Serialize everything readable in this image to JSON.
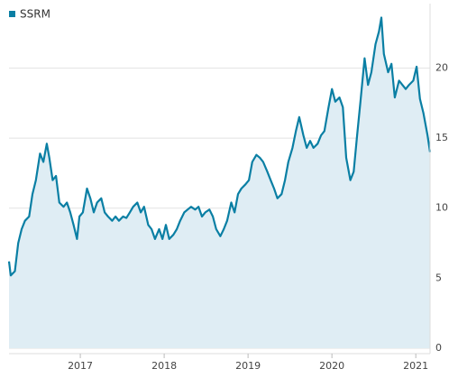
{
  "chart_data": {
    "type": "area",
    "series": [
      {
        "name": "SSRM",
        "color": "#0a7fa4",
        "fill": "#dfedf4",
        "x": [
          2016.15,
          2016.17,
          2016.22,
          2016.26,
          2016.3,
          2016.34,
          2016.39,
          2016.43,
          2016.47,
          2016.52,
          2016.56,
          2016.6,
          2016.63,
          2016.67,
          2016.71,
          2016.75,
          2016.8,
          2016.84,
          2016.88,
          2016.92,
          2016.96,
          2016.99,
          2017.03,
          2017.08,
          2017.12,
          2017.16,
          2017.2,
          2017.25,
          2017.29,
          2017.33,
          2017.38,
          2017.42,
          2017.46,
          2017.51,
          2017.55,
          2017.59,
          2017.63,
          2017.68,
          2017.72,
          2017.76,
          2017.81,
          2017.85,
          2017.89,
          2017.94,
          2017.98,
          2018.02,
          2018.06,
          2018.11,
          2018.15,
          2018.19,
          2018.24,
          2018.28,
          2018.32,
          2018.37,
          2018.41,
          2018.45,
          2018.49,
          2018.54,
          2018.58,
          2018.62,
          2018.67,
          2018.71,
          2018.75,
          2018.8,
          2018.84,
          2018.88,
          2018.92,
          2018.97,
          2019.01,
          2019.05,
          2019.1,
          2019.14,
          2019.18,
          2019.23,
          2019.27,
          2019.31,
          2019.35,
          2019.4,
          2019.44,
          2019.48,
          2019.53,
          2019.57,
          2019.61,
          2019.66,
          2019.7,
          2019.74,
          2019.78,
          2019.83,
          2019.87,
          2019.91,
          2019.96,
          2020.0,
          2020.04,
          2020.09,
          2020.13,
          2020.17,
          2020.22,
          2020.26,
          2020.3,
          2020.34,
          2020.39,
          2020.43,
          2020.47,
          2020.52,
          2020.56,
          2020.59,
          2020.62,
          2020.67,
          2020.71,
          2020.75,
          2020.8,
          2020.84,
          2020.88,
          2020.92,
          2020.97,
          2021.01,
          2021.05,
          2021.09,
          2021.14,
          2021.17
        ],
        "values": [
          6.2,
          5.2,
          5.5,
          7.5,
          8.5,
          9.1,
          9.4,
          11,
          12,
          13.9,
          13.3,
          14.6,
          13.6,
          12,
          12.3,
          10.4,
          10.1,
          10.4,
          9.7,
          8.8,
          7.8,
          9.4,
          9.7,
          11.4,
          10.7,
          9.7,
          10.4,
          10.7,
          9.7,
          9.4,
          9.1,
          9.4,
          9.1,
          9.4,
          9.3,
          9.7,
          10.1,
          10.4,
          9.7,
          10.1,
          8.8,
          8.5,
          7.8,
          8.5,
          7.8,
          8.8,
          7.8,
          8.1,
          8.5,
          9.1,
          9.7,
          9.9,
          10.1,
          9.9,
          10.1,
          9.4,
          9.7,
          9.9,
          9.4,
          8.5,
          8.0,
          8.5,
          9.1,
          10.4,
          9.7,
          11,
          11.4,
          11.7,
          12,
          13.3,
          13.8,
          13.6,
          13.3,
          12.6,
          12,
          11.4,
          10.7,
          11,
          12,
          13.3,
          14.3,
          15.5,
          16.5,
          15.2,
          14.3,
          14.8,
          14.3,
          14.6,
          15.2,
          15.5,
          17.2,
          18.5,
          17.6,
          17.9,
          17.2,
          13.6,
          12,
          12.6,
          15.2,
          17.6,
          20.7,
          18.8,
          19.7,
          21.7,
          22.6,
          23.6,
          21,
          19.7,
          20.3,
          17.9,
          19.1,
          18.8,
          18.5,
          18.8,
          19.1,
          20.1,
          17.8,
          16.8,
          15.2,
          14.0
        ]
      }
    ],
    "xlim": [
      2016.15,
      2021.17
    ],
    "xticks": [
      2017,
      2018,
      2019,
      2020,
      2021
    ],
    "ylim": [
      0,
      24.6
    ],
    "yticks": [
      0,
      5,
      10,
      15,
      20
    ],
    "grid": true
  }
}
